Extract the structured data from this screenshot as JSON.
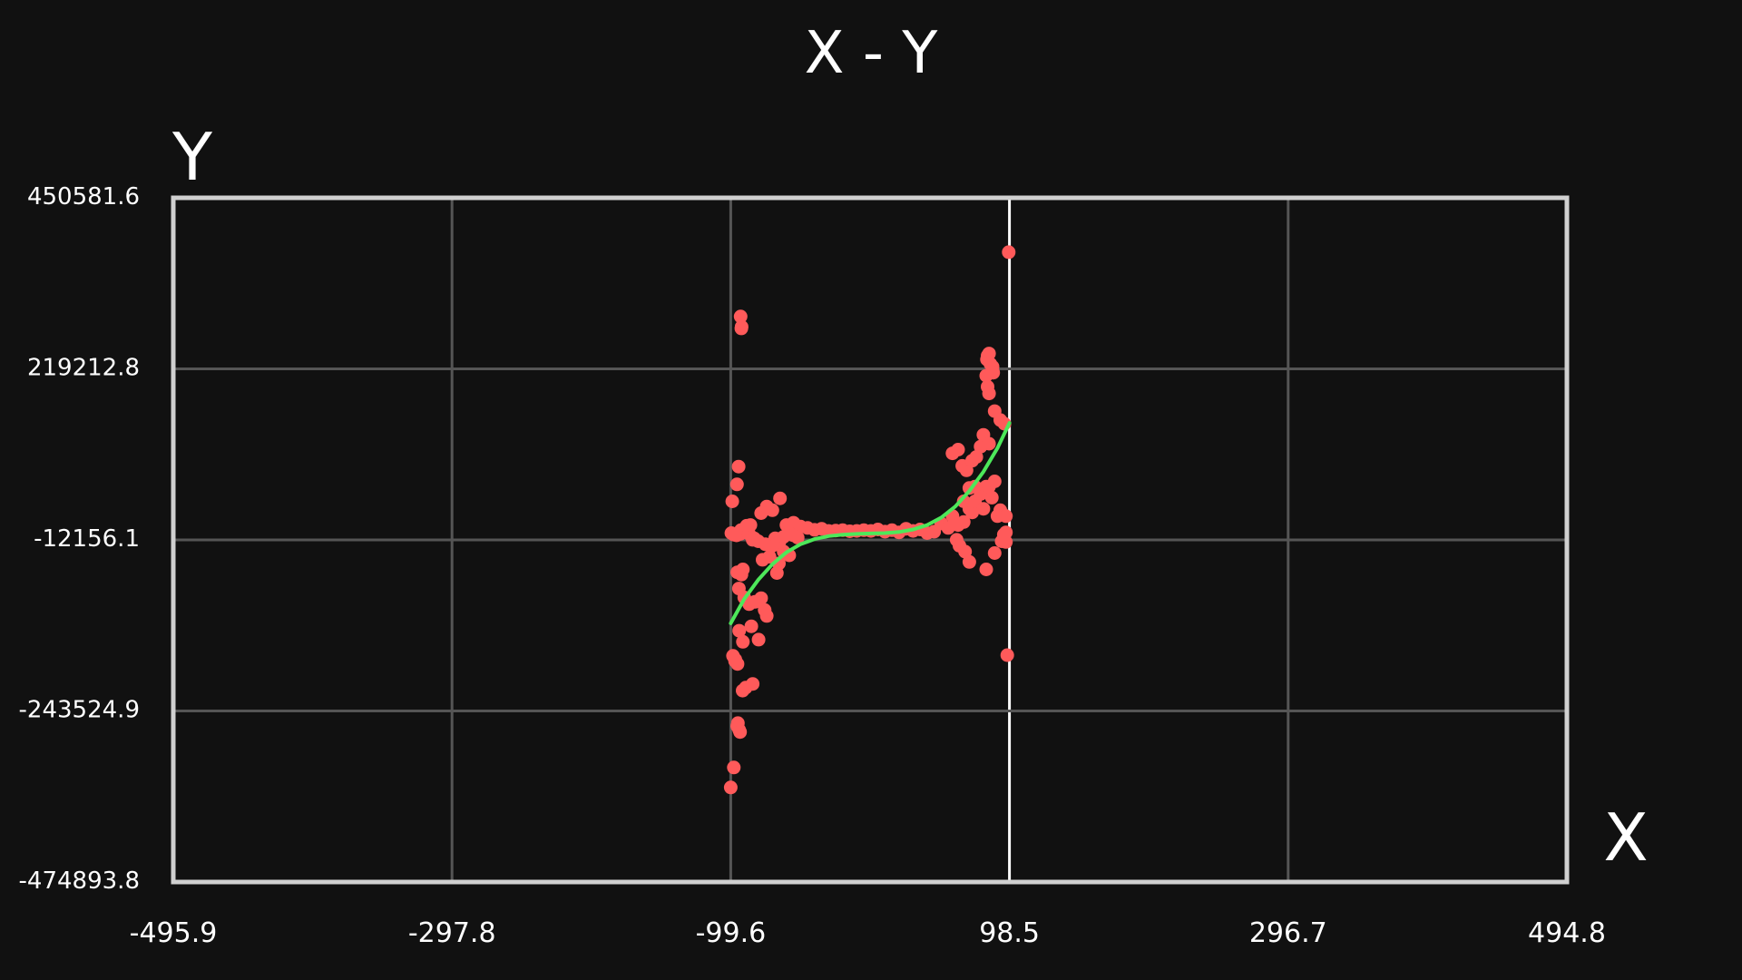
{
  "chart_data": {
    "type": "scatter",
    "title": "X - Y",
    "xlabel": "X",
    "ylabel": "Y",
    "xlim": [
      -495.9,
      494.8
    ],
    "ylim": [
      -474893.8,
      450581.6
    ],
    "x_ticks": [
      "-495.9",
      "-297.8",
      "-99.6",
      "98.5",
      "296.7",
      "494.8"
    ],
    "y_ticks": [
      "450581.6",
      "219212.8",
      "-12156.1",
      "-243524.9",
      "-474893.8"
    ],
    "grid": true,
    "colors": {
      "background": "#111111",
      "frame": "#d0d0d0",
      "grid": "#555555",
      "highlight_grid": "#ffffff",
      "points": "#ff5a5a",
      "fit": "#4de85a"
    },
    "fit_curve": {
      "x": [
        -99.6,
        -90,
        -80,
        -70,
        -60,
        -50,
        -40,
        -30,
        -20,
        -10,
        0,
        10,
        20,
        30,
        40,
        50,
        60,
        70,
        80,
        90,
        98.5
      ],
      "y": [
        -125000,
        -92000,
        -66000,
        -45000,
        -29000,
        -18000,
        -11000,
        -7000,
        -5000,
        -4000,
        -3500,
        -3000,
        -1500,
        2000,
        8000,
        18000,
        33000,
        54000,
        80000,
        112000,
        146000
      ]
    },
    "series": [
      {
        "type": "scatter",
        "points": [
          [
            -92.6,
            290000
          ],
          [
            -91.9,
            276000
          ],
          [
            -92.1,
            274000
          ],
          [
            -98.5,
            40000
          ],
          [
            -95.2,
            63000
          ],
          [
            -94.0,
            87000
          ],
          [
            -99.2,
            -3000
          ],
          [
            -97.5,
            -5000
          ],
          [
            -95.5,
            -6000
          ],
          [
            -93.0,
            -4000
          ],
          [
            -92.4,
            1000
          ],
          [
            -90.0,
            3000
          ],
          [
            -88.3,
            7000
          ],
          [
            -86.5,
            -4000
          ],
          [
            -85.6,
            8000
          ],
          [
            -84.0,
            -12000
          ],
          [
            -83.0,
            -10000
          ],
          [
            -78.0,
            24000
          ],
          [
            -74.0,
            33000
          ],
          [
            -70.0,
            28000
          ],
          [
            -64.6,
            44000
          ],
          [
            -95.0,
            -56000
          ],
          [
            -93.8,
            -78000
          ],
          [
            -90.0,
            -90000
          ],
          [
            -86.5,
            -99000
          ],
          [
            -82.4,
            -96000
          ],
          [
            -78.0,
            -91000
          ],
          [
            -75.5,
            -107000
          ],
          [
            -92.0,
            -59000
          ],
          [
            -91.0,
            -52000
          ],
          [
            -77.0,
            -39000
          ],
          [
            -72.0,
            -35000
          ],
          [
            -66.8,
            -57000
          ],
          [
            -65.4,
            -44000
          ],
          [
            -62.0,
            -28000
          ],
          [
            -58.0,
            -33000
          ],
          [
            -93.6,
            -135000
          ],
          [
            -91.0,
            -150000
          ],
          [
            -85.0,
            -129000
          ],
          [
            -79.8,
            -147000
          ],
          [
            -74.0,
            -115000
          ],
          [
            -98.0,
            -169000
          ],
          [
            -96.5,
            -176000
          ],
          [
            -94.8,
            -180000
          ],
          [
            -96.3,
            -174000
          ],
          [
            -91.2,
            -216000
          ],
          [
            -89.0,
            -212000
          ],
          [
            -84.0,
            -207000
          ],
          [
            -94.5,
            -260000
          ],
          [
            -95.0,
            -264000
          ],
          [
            -93.6,
            -269000
          ],
          [
            -93.0,
            -272000
          ],
          [
            -97.4,
            -320000
          ],
          [
            -99.6,
            -347000
          ],
          [
            -60.0,
            8000
          ],
          [
            -55.0,
            11000
          ],
          [
            -50.0,
            6000
          ],
          [
            -45.0,
            4000
          ],
          [
            -40.0,
            1500
          ],
          [
            -35.0,
            3000
          ],
          [
            -30.0,
            0
          ],
          [
            -25.0,
            500
          ],
          [
            -20.0,
            1000
          ],
          [
            -15.0,
            -500
          ],
          [
            -10.0,
            0
          ],
          [
            -5.0,
            1000
          ],
          [
            0,
            0
          ],
          [
            5.0,
            2000
          ],
          [
            10.0,
            -1000
          ],
          [
            15.0,
            1000
          ],
          [
            20.0,
            -2000
          ],
          [
            25.0,
            3000
          ],
          [
            30.0,
            0
          ],
          [
            35.0,
            2000
          ],
          [
            40.0,
            -3000
          ],
          [
            45.0,
            -1000
          ],
          [
            -68.0,
            -10000
          ],
          [
            -65.0,
            -15000
          ],
          [
            -62.0,
            -8000
          ],
          [
            -58.0,
            -3000
          ],
          [
            -55.0,
            -6000
          ],
          [
            -52.0,
            -9000
          ],
          [
            -70.0,
            -20000
          ],
          [
            -75.0,
            -18000
          ],
          [
            -80.0,
            -14000
          ],
          [
            50.0,
            10000
          ],
          [
            55.0,
            4000
          ],
          [
            58.0,
            20000
          ],
          [
            62.0,
            8000
          ],
          [
            66.0,
            12000
          ],
          [
            70.0,
            30000
          ],
          [
            72.0,
            25000
          ],
          [
            74.0,
            40000
          ],
          [
            78.0,
            50000
          ],
          [
            80.0,
            30000
          ],
          [
            82.0,
            60000
          ],
          [
            84.0,
            60000
          ],
          [
            86.0,
            45000
          ],
          [
            88.0,
            67000
          ],
          [
            90.0,
            20000
          ],
          [
            92.0,
            28000
          ],
          [
            58.0,
            105000
          ],
          [
            62.0,
            110000
          ],
          [
            65.0,
            88000
          ],
          [
            68.0,
            82000
          ],
          [
            72.0,
            95000
          ],
          [
            75.0,
            100000
          ],
          [
            78.0,
            114000
          ],
          [
            80.0,
            130000
          ],
          [
            84.0,
            118000
          ],
          [
            88.0,
            162000
          ],
          [
            92.0,
            150000
          ],
          [
            95.0,
            145000
          ],
          [
            74.0,
            60000
          ],
          [
            70.0,
            58000
          ],
          [
            66.0,
            40000
          ],
          [
            61.0,
            -12000
          ],
          [
            63.0,
            -20000
          ],
          [
            67.0,
            -28000
          ],
          [
            70.0,
            -42000
          ],
          [
            82.0,
            -52000
          ],
          [
            88.0,
            -30000
          ],
          [
            93.0,
            -14000
          ],
          [
            96.0,
            -2000
          ],
          [
            94.5,
            -5000
          ],
          [
            96.0,
            -15000
          ],
          [
            84.0,
            186000
          ],
          [
            83.0,
            195000
          ],
          [
            82.0,
            210000
          ],
          [
            82.5,
            232000
          ],
          [
            83.0,
            237000
          ],
          [
            84.0,
            240000
          ],
          [
            85.0,
            226000
          ],
          [
            86.5,
            222000
          ],
          [
            87.0,
            214000
          ],
          [
            96.0,
            20000
          ],
          [
            98.0,
            377000
          ],
          [
            97.0,
            -168000
          ]
        ]
      }
    ]
  }
}
